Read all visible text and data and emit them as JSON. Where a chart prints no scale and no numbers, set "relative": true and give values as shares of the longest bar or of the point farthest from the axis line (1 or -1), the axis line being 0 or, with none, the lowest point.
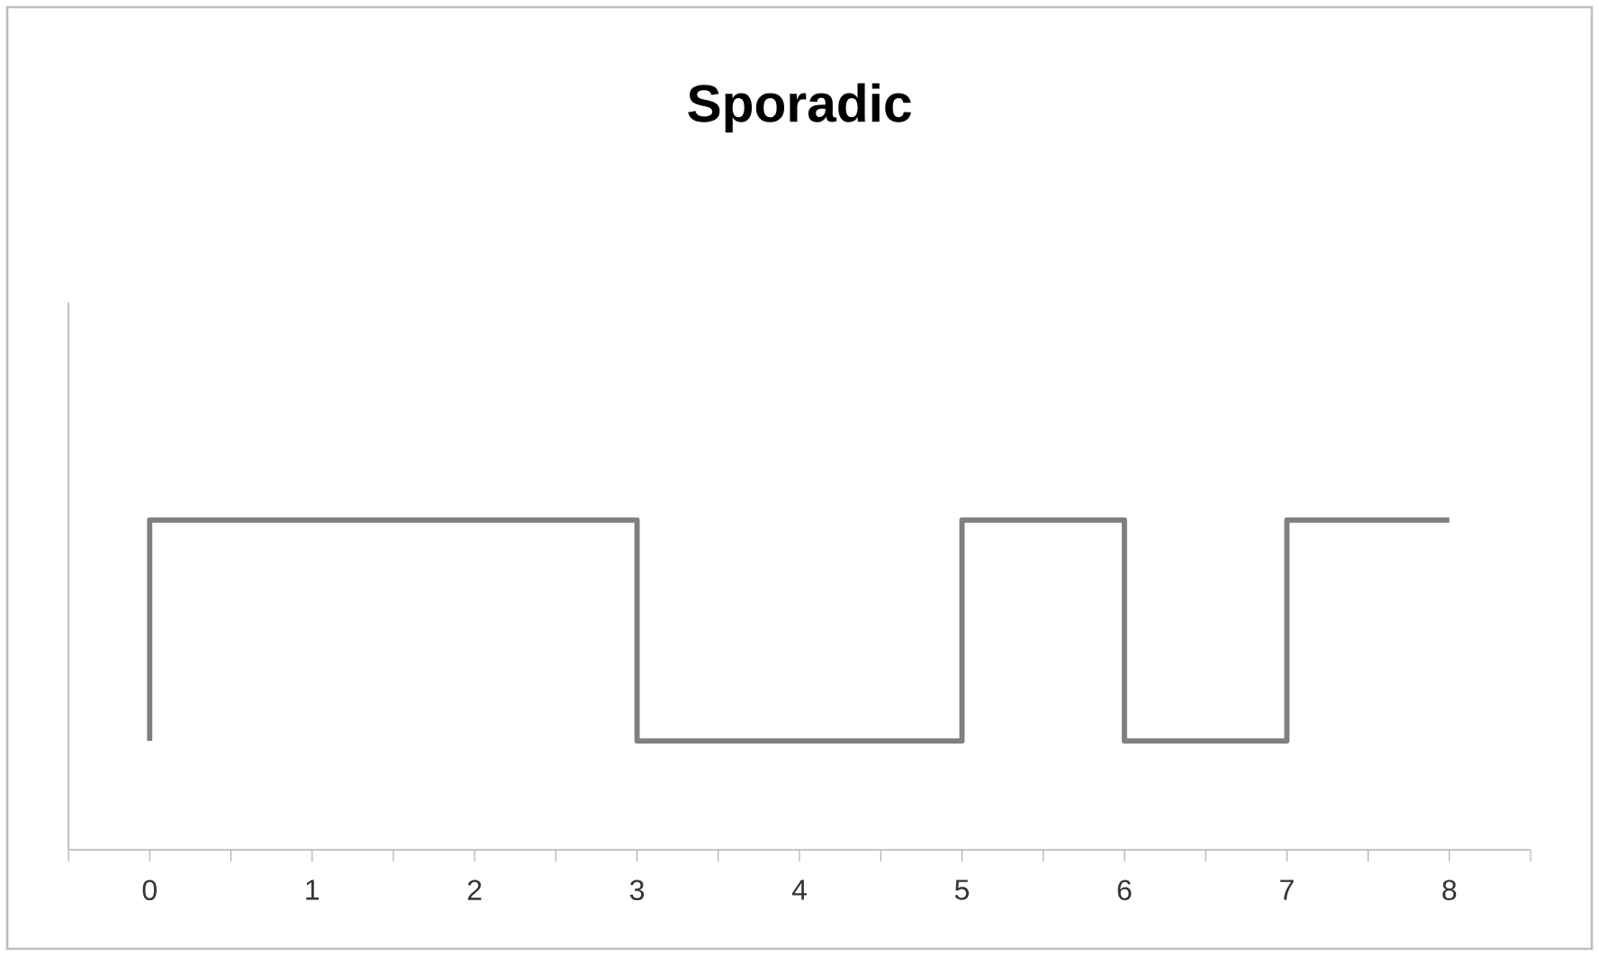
{
  "chart_data": {
    "type": "line",
    "title": "Sporadic",
    "relative": true,
    "x": [
      0,
      0,
      3,
      3,
      5,
      5,
      6,
      6,
      7,
      7,
      8
    ],
    "series": [
      {
        "color": "#808080",
        "values": [
          0.33,
          1,
          1,
          0.33,
          0.33,
          1,
          1,
          0.33,
          0.33,
          1,
          1
        ]
      }
    ],
    "xlim": [
      -0.5,
      8.5
    ],
    "xticks": [
      {
        "value": -0.5,
        "label": null
      },
      0,
      {
        "value": 0.5,
        "label": null
      },
      1,
      {
        "value": 1.5,
        "label": null
      },
      2,
      {
        "value": 2.5,
        "label": null
      },
      3,
      {
        "value": 3.5,
        "label": null
      },
      4,
      {
        "value": 4.5,
        "label": null
      },
      5,
      {
        "value": 5.5,
        "label": null
      },
      6,
      {
        "value": 6.5,
        "label": null
      },
      7,
      {
        "value": 7.5,
        "label": null
      },
      8,
      {
        "value": 8.5,
        "label": null
      }
    ],
    "tick_labels": "x",
    "grid": false,
    "legend": false,
    "marker": "none",
    "line_style": "solid"
  }
}
